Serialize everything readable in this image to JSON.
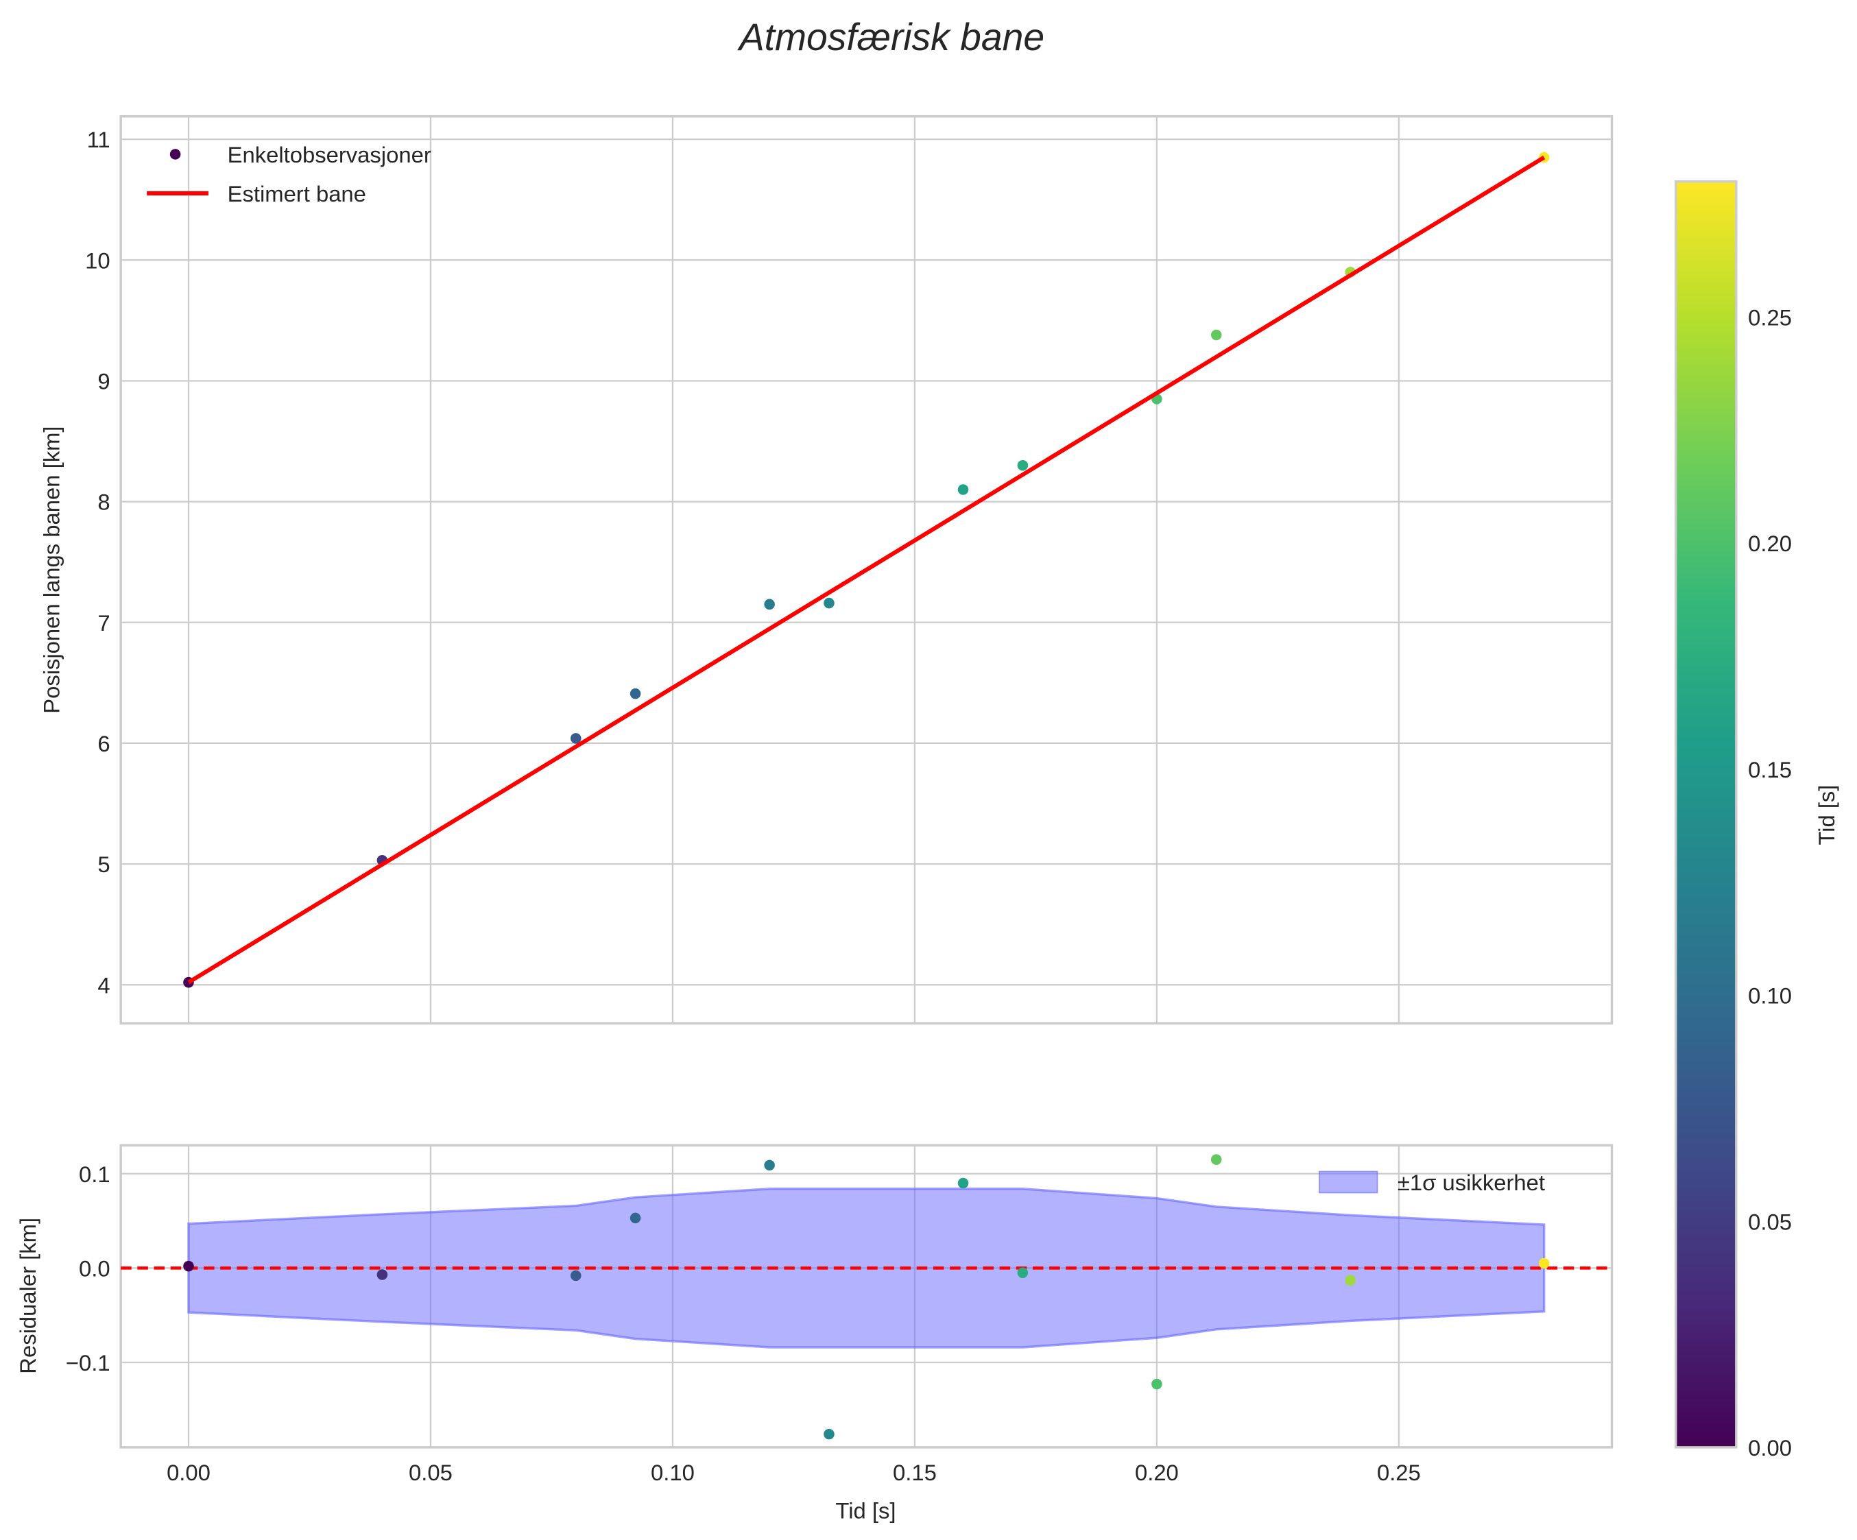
{
  "chart_data": [
    {
      "type": "scatter",
      "title": "Atmosfærisk bane",
      "xlabel": "",
      "ylabel": "Posisjonen langs banen [km]",
      "xlim": [
        -0.014,
        0.294
      ],
      "ylim": [
        3.68,
        11.19
      ],
      "xticks": [
        0.0,
        0.05,
        0.1,
        0.15,
        0.2,
        0.25
      ],
      "yticks": [
        4,
        5,
        6,
        7,
        8,
        9,
        10,
        11
      ],
      "grid": true,
      "legend": {
        "placement": "top-left",
        "entries": [
          "Enkeltobservasjoner",
          "Estimert bane"
        ]
      },
      "series": [
        {
          "name": "Enkeltobservasjoner",
          "type": "scatter",
          "x": [
            0.0,
            0.04,
            0.08,
            0.0923,
            0.12,
            0.1323,
            0.16,
            0.1723,
            0.2,
            0.2123,
            0.24,
            0.28
          ],
          "y": [
            4.02,
            5.03,
            6.04,
            6.41,
            7.15,
            7.16,
            8.1,
            8.3,
            8.85,
            9.38,
            9.9,
            10.85
          ],
          "color_by": "x"
        },
        {
          "name": "Estimert bane",
          "type": "line",
          "x": [
            0.0,
            0.28
          ],
          "y": [
            4.02,
            10.85
          ],
          "color": "#ff0000"
        }
      ]
    },
    {
      "type": "scatter",
      "xlabel": "Tid [s]",
      "ylabel": "Residualer [km]",
      "xlim": [
        -0.014,
        0.294
      ],
      "ylim": [
        -0.19,
        0.13
      ],
      "xticks": [
        0.0,
        0.05,
        0.1,
        0.15,
        0.2,
        0.25
      ],
      "xticklabels": [
        "0.00",
        "0.05",
        "0.10",
        "0.15",
        "0.20",
        "0.25"
      ],
      "yticks": [
        -0.1,
        0.0,
        0.1
      ],
      "yticklabels": [
        "−0.1",
        "0.0",
        "0.1"
      ],
      "grid": true,
      "legend": {
        "placement": "top-right",
        "entries": [
          "±1σ usikkerhet"
        ]
      },
      "series": [
        {
          "name": "residualer",
          "type": "scatter",
          "x": [
            0.0,
            0.04,
            0.08,
            0.0923,
            0.12,
            0.1323,
            0.16,
            0.1723,
            0.2,
            0.2123,
            0.24,
            0.28
          ],
          "y": [
            0.002,
            -0.007,
            -0.008,
            0.053,
            0.109,
            -0.176,
            0.09,
            -0.005,
            -0.123,
            0.115,
            -0.013,
            0.005
          ],
          "color_by": "x"
        },
        {
          "name": "±1σ usikkerhet",
          "type": "area",
          "color": "#6666ff",
          "x": [
            0.0,
            0.04,
            0.08,
            0.0923,
            0.12,
            0.1323,
            0.16,
            0.1723,
            0.2,
            0.2123,
            0.24,
            0.28
          ],
          "sigma": [
            0.047,
            0.057,
            0.066,
            0.075,
            0.084,
            0.084,
            0.084,
            0.084,
            0.074,
            0.065,
            0.056,
            0.046
          ]
        },
        {
          "name": "null",
          "type": "hline",
          "y": 0,
          "color": "#ff0000",
          "style": "dashed"
        }
      ]
    }
  ],
  "colorbar": {
    "label": "Tid [s]",
    "range": [
      0,
      0.28
    ],
    "ticks": [
      0.0,
      0.05,
      0.1,
      0.15,
      0.2,
      0.25
    ],
    "ticklabels": [
      "0.00",
      "0.05",
      "0.10",
      "0.15",
      "0.20",
      "0.25"
    ],
    "colormap": "viridis"
  }
}
